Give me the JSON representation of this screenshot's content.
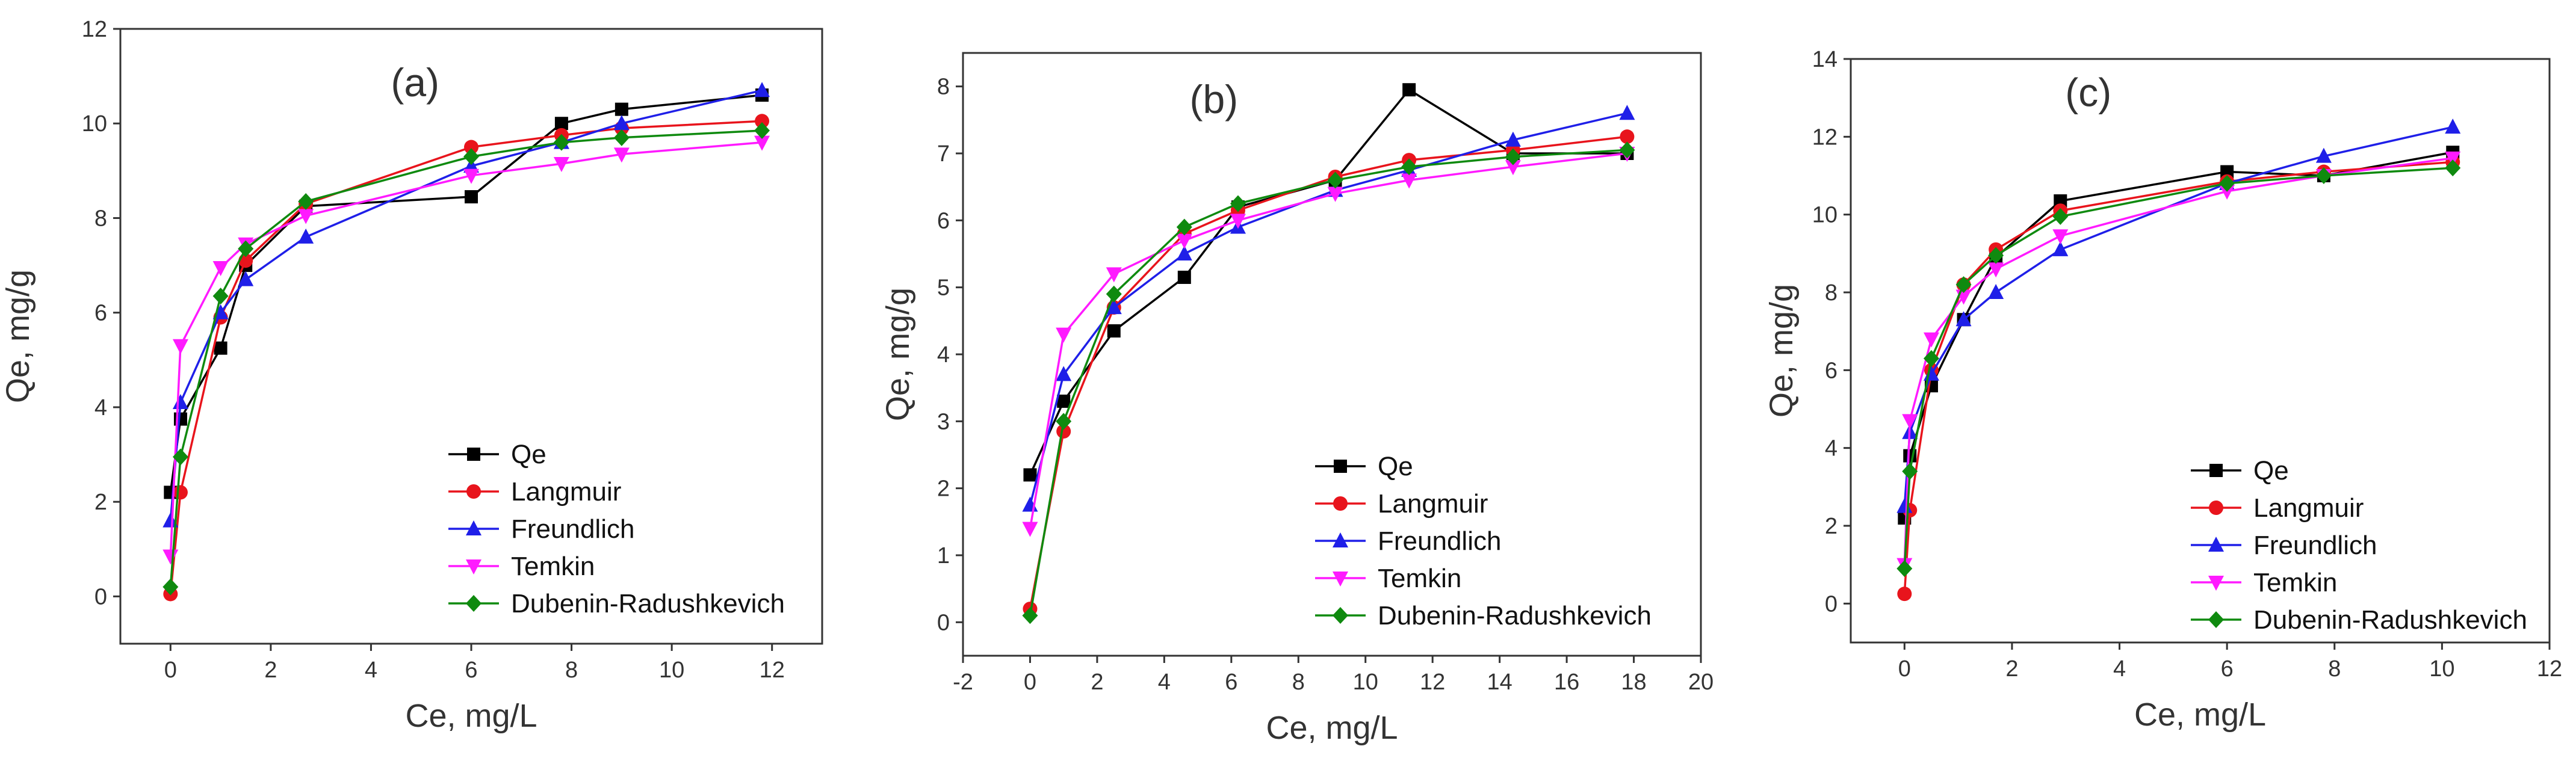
{
  "figure": {
    "colors": {
      "Qe": "#000000",
      "Langmuir": "#e8141c",
      "Freundlich": "#1f1fe8",
      "Temkin": "#ff1aff",
      "Dubenin-Radushkevich": "#0f8a0f"
    },
    "markers": {
      "Qe": "square",
      "Langmuir": "circle",
      "Freundlich": "triangle-up",
      "Temkin": "triangle-down",
      "Dubenin-Radushkevich": "diamond"
    }
  },
  "chart_data": [
    {
      "type": "line",
      "panel": "(a)",
      "xlabel": "Ce, mg/L",
      "ylabel": "Qe, mg/g",
      "xlim": [
        -1,
        13
      ],
      "ylim": [
        -1,
        12
      ],
      "xticks": [
        0,
        2,
        4,
        6,
        8,
        10,
        12
      ],
      "yticks": [
        0,
        2,
        4,
        6,
        8,
        10,
        12
      ],
      "legend": "bottom-right",
      "series": [
        {
          "name": "Qe",
          "x": [
            0,
            0.2,
            1.0,
            1.5,
            2.7,
            6.0,
            7.8,
            9.0,
            11.8
          ],
          "y": [
            2.2,
            3.75,
            5.25,
            7.0,
            8.25,
            8.45,
            10.0,
            10.3,
            10.6
          ]
        },
        {
          "name": "Langmuir",
          "x": [
            0,
            0.2,
            1.0,
            1.5,
            2.7,
            6.0,
            7.8,
            9.0,
            11.8
          ],
          "y": [
            0.05,
            2.2,
            5.9,
            7.1,
            8.3,
            9.5,
            9.75,
            9.9,
            10.05
          ]
        },
        {
          "name": "Freundlich",
          "x": [
            0,
            0.2,
            1.0,
            1.5,
            2.7,
            6.0,
            7.8,
            9.0,
            11.8
          ],
          "y": [
            1.6,
            4.1,
            6.0,
            6.7,
            7.6,
            9.1,
            9.6,
            10.0,
            10.7
          ]
        },
        {
          "name": "Temkin",
          "x": [
            0,
            0.2,
            1.0,
            1.5,
            2.7,
            6.0,
            7.8,
            9.0,
            11.8
          ],
          "y": [
            0.85,
            5.3,
            6.95,
            7.45,
            8.05,
            8.9,
            9.15,
            9.35,
            9.6
          ]
        },
        {
          "name": "Dubenin-Radushkevich",
          "x": [
            0,
            0.2,
            1.0,
            1.5,
            2.7,
            6.0,
            7.8,
            9.0,
            11.8
          ],
          "y": [
            0.2,
            2.95,
            6.35,
            7.35,
            8.35,
            9.3,
            9.6,
            9.7,
            9.85
          ]
        }
      ]
    },
    {
      "type": "line",
      "panel": "(b)",
      "xlabel": "Ce, mg/L",
      "ylabel": "Qe, mg/g",
      "xlim": [
        -2,
        20
      ],
      "ylim": [
        -0.5,
        8.5
      ],
      "xticks": [
        -2,
        0,
        2,
        4,
        6,
        8,
        10,
        12,
        14,
        16,
        18,
        20
      ],
      "yticks": [
        0,
        1,
        2,
        3,
        4,
        5,
        6,
        7,
        8
      ],
      "legend": "bottom-right",
      "series": [
        {
          "name": "Qe",
          "x": [
            0,
            1.0,
            2.5,
            4.6,
            6.2,
            9.1,
            11.3,
            14.4,
            17.8
          ],
          "y": [
            2.2,
            3.3,
            4.35,
            5.15,
            6.2,
            6.6,
            7.95,
            7.0,
            7.0
          ]
        },
        {
          "name": "Langmuir",
          "x": [
            0,
            1.0,
            2.5,
            4.6,
            6.2,
            9.1,
            11.3,
            14.4,
            17.8
          ],
          "y": [
            0.2,
            2.85,
            4.7,
            5.8,
            6.15,
            6.65,
            6.9,
            7.05,
            7.25
          ]
        },
        {
          "name": "Freundlich",
          "x": [
            0,
            1.0,
            2.5,
            4.6,
            6.2,
            9.1,
            11.3,
            14.4,
            17.8
          ],
          "y": [
            1.75,
            3.7,
            4.7,
            5.5,
            5.9,
            6.45,
            6.75,
            7.2,
            7.6
          ]
        },
        {
          "name": "Temkin",
          "x": [
            0,
            1.0,
            2.5,
            4.6,
            6.2,
            9.1,
            11.3,
            14.4,
            17.8
          ],
          "y": [
            1.4,
            4.3,
            5.2,
            5.7,
            6.0,
            6.4,
            6.6,
            6.8,
            7.0
          ]
        },
        {
          "name": "Dubenin-Radushkevich",
          "x": [
            0,
            1.0,
            2.5,
            4.6,
            6.2,
            9.1,
            11.3,
            14.4,
            17.8
          ],
          "y": [
            0.1,
            3.0,
            4.9,
            5.9,
            6.25,
            6.6,
            6.8,
            6.95,
            7.05
          ]
        }
      ]
    },
    {
      "type": "line",
      "panel": "(c)",
      "xlabel": "Ce, mg/L",
      "ylabel": "Qe, mg/g",
      "xlim": [
        -1,
        12
      ],
      "ylim": [
        -1,
        14
      ],
      "xticks": [
        0,
        2,
        4,
        6,
        8,
        10,
        12
      ],
      "yticks": [
        0,
        2,
        4,
        6,
        8,
        10,
        12,
        14
      ],
      "legend": "bottom-right",
      "series": [
        {
          "name": "Qe",
          "x": [
            0,
            0.1,
            0.5,
            1.1,
            1.7,
            2.9,
            6.0,
            7.8,
            10.2
          ],
          "y": [
            2.2,
            3.8,
            5.6,
            7.3,
            8.9,
            10.35,
            11.1,
            11.0,
            11.6
          ]
        },
        {
          "name": "Langmuir",
          "x": [
            0,
            0.1,
            0.5,
            1.1,
            1.7,
            2.9,
            6.0,
            7.8,
            10.2
          ],
          "y": [
            0.25,
            2.4,
            6.0,
            8.2,
            9.1,
            10.1,
            10.85,
            11.1,
            11.35
          ]
        },
        {
          "name": "Freundlich",
          "x": [
            0,
            0.1,
            0.5,
            1.1,
            1.7,
            2.9,
            6.0,
            7.8,
            10.2
          ],
          "y": [
            2.5,
            4.4,
            5.9,
            7.3,
            8.0,
            9.1,
            10.8,
            11.5,
            12.25
          ]
        },
        {
          "name": "Temkin",
          "x": [
            0,
            0.1,
            0.5,
            1.1,
            1.7,
            2.9,
            6.0,
            7.8,
            10.2
          ],
          "y": [
            1.0,
            4.7,
            6.8,
            7.9,
            8.6,
            9.45,
            10.6,
            11.0,
            11.45
          ]
        },
        {
          "name": "Dubenin-Radushkevich",
          "x": [
            0,
            0.1,
            0.5,
            1.1,
            1.7,
            2.9,
            6.0,
            7.8,
            10.2
          ],
          "y": [
            0.9,
            3.4,
            6.3,
            8.2,
            8.95,
            9.95,
            10.8,
            11.0,
            11.2
          ]
        }
      ]
    }
  ]
}
